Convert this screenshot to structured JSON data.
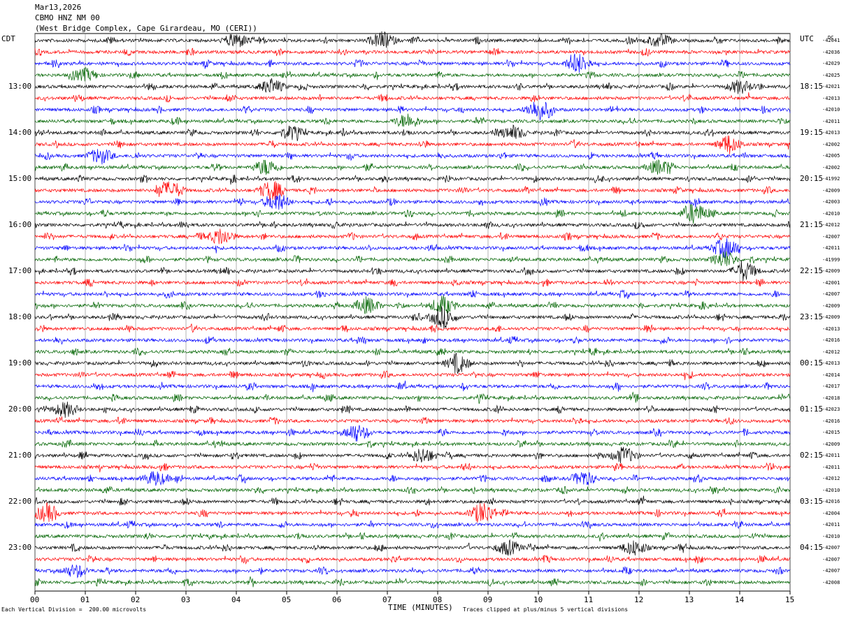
{
  "header": {
    "date": "Mar13,2026",
    "station": "CBMO HNZ NM 00",
    "location": "(West Bridge Complex, Cape Girardeau, MO (CERI))"
  },
  "axis": {
    "left_tz": "CDT",
    "right_tz": "UTC",
    "dc_label": "DC",
    "xlabel": "TIME (MINUTES)",
    "scale_note": "Each Vertical Division =  200.00 microvolts",
    "clip_note": "Traces clipped at plus/minus 5 vertical divisions"
  },
  "colors": {
    "black": "#000000",
    "red": "#ff0000",
    "blue": "#0000ff",
    "green": "#006400",
    "grid": "#808080"
  },
  "chart_data": {
    "type": "line",
    "title": "CBMO HNZ NM 00",
    "xlabel": "TIME (MINUTES)",
    "xlim": [
      0,
      15
    ],
    "x_ticks": [
      "00",
      "01",
      "02",
      "03",
      "04",
      "05",
      "06",
      "07",
      "08",
      "09",
      "10",
      "11",
      "12",
      "13",
      "14",
      "15"
    ],
    "trace_colors": [
      "black",
      "red",
      "blue",
      "green"
    ],
    "left_time_labels": [
      "13:00",
      "14:00",
      "15:00",
      "16:00",
      "17:00",
      "18:00",
      "19:00",
      "20:00",
      "21:00",
      "22:00",
      "23:00"
    ],
    "right_time_labels": [
      "18:15",
      "19:15",
      "20:15",
      "21:15",
      "22:15",
      "23:15",
      "00:15",
      "01:15",
      "02:15",
      "03:15",
      "04:15"
    ],
    "dc_offsets": [
      -42041,
      -42036,
      -42029,
      -42025,
      -42021,
      -42013,
      -42010,
      -42011,
      -42013,
      -42002,
      -42005,
      -42002,
      -41992,
      -42009,
      -42003,
      -42010,
      -42012,
      -42007,
      -42011,
      -41999,
      -42009,
      -42001,
      -42007,
      -42009,
      -42009,
      -42013,
      -42016,
      -42012,
      -42013,
      -42014,
      -42017,
      -42018,
      -42023,
      -42016,
      -42015,
      -42009,
      -42011,
      -42011,
      -42012,
      -42010,
      -42016,
      -42004,
      -42011,
      -42010,
      -42007,
      -42007,
      -42007,
      -42008
    ],
    "events": [
      {
        "trace": 0,
        "minute": 6.9,
        "amp": 2.0
      },
      {
        "trace": 0,
        "minute": 4.0,
        "amp": 1.8
      },
      {
        "trace": 0,
        "minute": 12.4,
        "amp": 1.6
      },
      {
        "trace": 2,
        "minute": 10.8,
        "amp": 2.2
      },
      {
        "trace": 3,
        "minute": 1.0,
        "amp": 1.5
      },
      {
        "trace": 4,
        "minute": 4.7,
        "amp": 1.8
      },
      {
        "trace": 4,
        "minute": 14.0,
        "amp": 1.6
      },
      {
        "trace": 6,
        "minute": 10.0,
        "amp": 2.6
      },
      {
        "trace": 7,
        "minute": 7.4,
        "amp": 1.8
      },
      {
        "trace": 8,
        "minute": 5.1,
        "amp": 1.7
      },
      {
        "trace": 8,
        "minute": 9.5,
        "amp": 1.6
      },
      {
        "trace": 9,
        "minute": 13.8,
        "amp": 1.8
      },
      {
        "trace": 10,
        "minute": 1.3,
        "amp": 1.9
      },
      {
        "trace": 11,
        "minute": 4.6,
        "amp": 2.0
      },
      {
        "trace": 11,
        "minute": 12.4,
        "amp": 1.8
      },
      {
        "trace": 13,
        "minute": 2.7,
        "amp": 2.2
      },
      {
        "trace": 13,
        "minute": 4.7,
        "amp": 2.4
      },
      {
        "trace": 14,
        "minute": 4.8,
        "amp": 2.2
      },
      {
        "trace": 15,
        "minute": 13.1,
        "amp": 2.5
      },
      {
        "trace": 17,
        "minute": 3.7,
        "amp": 2.0
      },
      {
        "trace": 18,
        "minute": 13.7,
        "amp": 2.4
      },
      {
        "trace": 19,
        "minute": 13.7,
        "amp": 2.0
      },
      {
        "trace": 20,
        "minute": 14.1,
        "amp": 2.2
      },
      {
        "trace": 23,
        "minute": 6.6,
        "amp": 2.0
      },
      {
        "trace": 23,
        "minute": 8.1,
        "amp": 2.2
      },
      {
        "trace": 24,
        "minute": 8.1,
        "amp": 2.6
      },
      {
        "trace": 28,
        "minute": 8.4,
        "amp": 1.8
      },
      {
        "trace": 32,
        "minute": 0.6,
        "amp": 1.8
      },
      {
        "trace": 34,
        "minute": 6.4,
        "amp": 1.8
      },
      {
        "trace": 36,
        "minute": 7.7,
        "amp": 1.9
      },
      {
        "trace": 36,
        "minute": 11.7,
        "amp": 2.0
      },
      {
        "trace": 38,
        "minute": 2.4,
        "amp": 1.8
      },
      {
        "trace": 38,
        "minute": 10.9,
        "amp": 1.8
      },
      {
        "trace": 41,
        "minute": 0.2,
        "amp": 1.8
      },
      {
        "trace": 41,
        "minute": 8.9,
        "amp": 2.8
      },
      {
        "trace": 44,
        "minute": 9.4,
        "amp": 1.8
      },
      {
        "trace": 44,
        "minute": 11.9,
        "amp": 1.8
      },
      {
        "trace": 46,
        "minute": 0.8,
        "amp": 1.5
      }
    ]
  }
}
